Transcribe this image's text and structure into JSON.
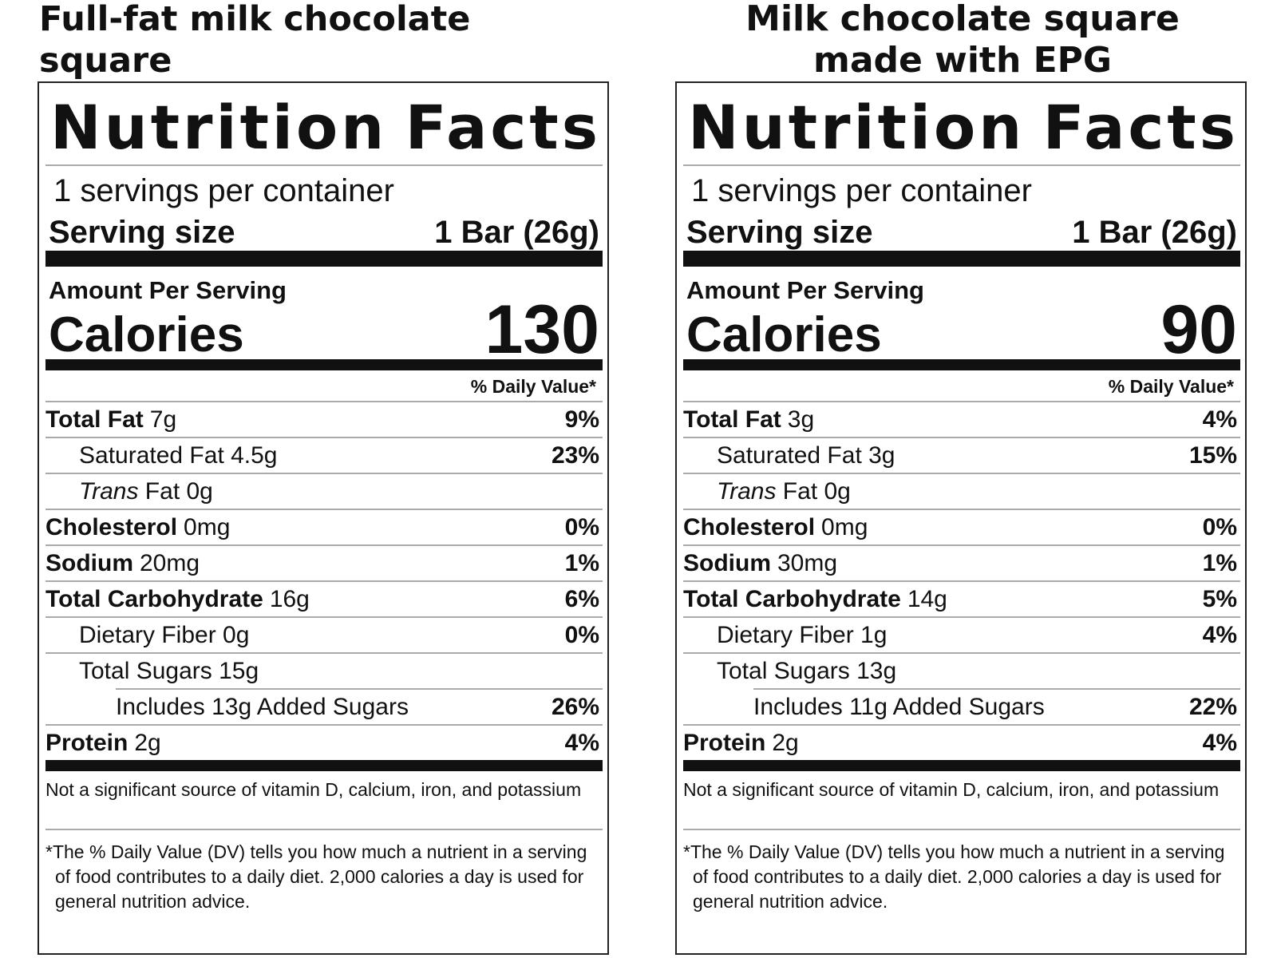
{
  "panels": [
    {
      "heading_line1": "Full-fat milk chocolate square",
      "heading_line2": "",
      "title_word1": "Nutrition",
      "title_word2": "Facts",
      "servings_per_container": "1 servings per container",
      "serving_size_label": "Serving size",
      "serving_size_value": "1 Bar (26g)",
      "amount_per_serving": "Amount Per Serving",
      "calories_label": "Calories",
      "calories_value": "130",
      "daily_value_header": "% Daily Value*",
      "rows": [
        {
          "label": "Total Fat",
          "amount": "7g",
          "pct": "9%"
        },
        {
          "label": "Saturated Fat 4.5g",
          "amount": "",
          "pct": "23%"
        },
        {
          "label_italic": "Trans",
          "label": " Fat 0g",
          "pct": ""
        },
        {
          "label": "Cholesterol",
          "amount": "0mg",
          "pct": "0%"
        },
        {
          "label": "Sodium",
          "amount": "20mg",
          "pct": "1%"
        },
        {
          "label": "Total Carbohydrate",
          "amount": "16g",
          "pct": "6%"
        },
        {
          "label": "Dietary Fiber 0g",
          "amount": "",
          "pct": "0%"
        },
        {
          "label": "Total Sugars 15g",
          "amount": "",
          "pct": ""
        },
        {
          "label": "Includes 13g Added Sugars",
          "amount": "",
          "pct": "26%"
        },
        {
          "label": "Protein",
          "amount": "2g",
          "pct": "4%"
        }
      ],
      "not_significant": "Not a significant source of vitamin D, calcium, iron, and potassium",
      "footnote": "*The % Daily Value (DV) tells you how much a nutrient in a serving of food contributes to a daily diet. 2,000 calories a day is used for general nutrition advice."
    },
    {
      "heading_line1": "Milk chocolate square",
      "heading_line2": "made with EPG",
      "title_word1": "Nutrition",
      "title_word2": "Facts",
      "servings_per_container": "1 servings per container",
      "serving_size_label": "Serving size",
      "serving_size_value": "1 Bar (26g)",
      "amount_per_serving": "Amount Per Serving",
      "calories_label": "Calories",
      "calories_value": "90",
      "daily_value_header": "% Daily Value*",
      "rows": [
        {
          "label": "Total Fat",
          "amount": "3g",
          "pct": "4%"
        },
        {
          "label": "Saturated Fat 3g",
          "amount": "",
          "pct": "15%"
        },
        {
          "label_italic": "Trans",
          "label": " Fat 0g",
          "pct": ""
        },
        {
          "label": "Cholesterol",
          "amount": "0mg",
          "pct": "0%"
        },
        {
          "label": "Sodium",
          "amount": "30mg",
          "pct": "1%"
        },
        {
          "label": "Total Carbohydrate",
          "amount": "14g",
          "pct": "5%"
        },
        {
          "label": "Dietary Fiber 1g",
          "amount": "",
          "pct": "4%"
        },
        {
          "label": "Total Sugars 13g",
          "amount": "",
          "pct": ""
        },
        {
          "label": "Includes 11g Added Sugars",
          "amount": "",
          "pct": "22%"
        },
        {
          "label": "Protein",
          "amount": "2g",
          "pct": "4%"
        }
      ],
      "not_significant": "Not a significant source of vitamin D, calcium, iron, and potassium",
      "footnote": "*The % Daily Value (DV) tells you how much a nutrient in a serving of food contributes to a daily diet. 2,000 calories a day is used for general nutrition advice."
    }
  ]
}
